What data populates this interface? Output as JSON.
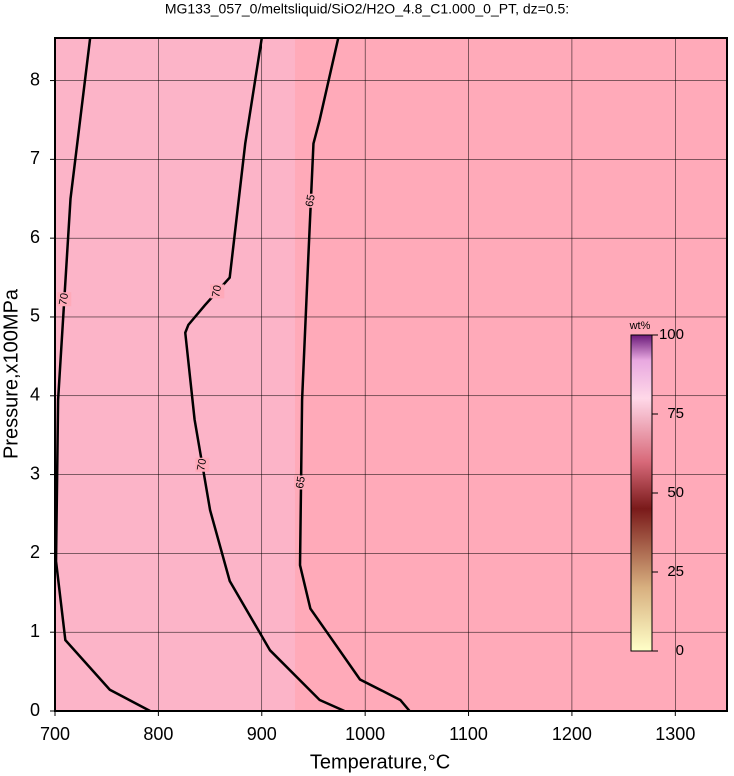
{
  "chart_data": {
    "type": "contour",
    "title": "MG133_057_0/meltsliquid/SiO2/H2O_4.8_C1.000_0_PT, dz=0.5:",
    "x_label": "Temperature,°C",
    "y_label": "Pressure,x100MPa",
    "xlim": [
      700,
      1350
    ],
    "ylim": [
      0,
      8.54
    ],
    "xticks": [
      700,
      800,
      900,
      1000,
      1100,
      1200,
      1300
    ],
    "yticks": [
      0,
      1,
      2,
      3,
      4,
      5,
      6,
      7,
      8
    ],
    "grid": true,
    "colorbar": {
      "label": "wt%",
      "lim": [
        0,
        100
      ],
      "ticks": [
        0,
        25,
        50,
        75,
        100
      ]
    },
    "contours": [
      {
        "level": 70,
        "x": [
          900,
          884,
          869,
          845,
          829,
          826,
          835,
          850,
          869,
          908,
          956,
          980
        ],
        "y": [
          8.54,
          7.2,
          5.5,
          5.15,
          4.9,
          4.8,
          3.7,
          2.55,
          1.65,
          0.77,
          0.14,
          0
        ]
      },
      {
        "level": 65,
        "x": [
          974,
          956,
          950,
          945,
          939,
          937,
          947,
          995,
          1034,
          1043
        ],
        "y": [
          8.54,
          7.5,
          7.2,
          5.75,
          3.95,
          1.85,
          1.3,
          0.4,
          0.14,
          0
        ]
      },
      {
        "level": 70,
        "x": [
          734,
          715,
          703,
          701,
          710,
          753,
          792
        ],
        "y": [
          8.54,
          6.5,
          3.95,
          1.9,
          0.9,
          0.27,
          0
        ]
      }
    ]
  }
}
